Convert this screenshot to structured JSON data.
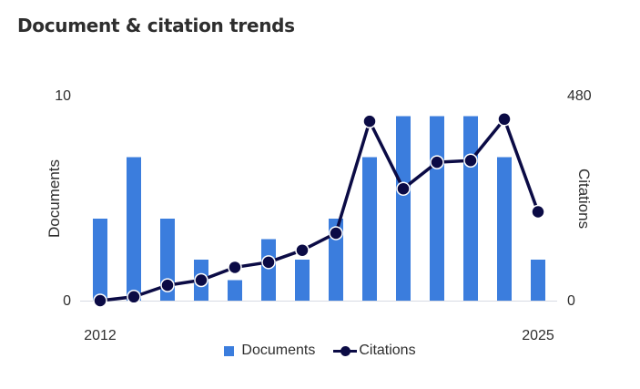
{
  "title": "Document & citation trends",
  "colors": {
    "documents": "#3b7ddd",
    "citations": "#0b0b45",
    "axis": "#d7dbe3"
  },
  "chart_data": {
    "type": "bar",
    "x": [
      2012,
      2013,
      2014,
      2015,
      2016,
      2017,
      2018,
      2019,
      2020,
      2021,
      2022,
      2023,
      2024,
      2025
    ],
    "x_tick_labels": [
      "2012",
      "2025"
    ],
    "series": [
      {
        "name": "Documents",
        "type": "bar",
        "axis": "left",
        "values": [
          4,
          7,
          4,
          2,
          1,
          3,
          2,
          4,
          7,
          9,
          9,
          9,
          7,
          2
        ]
      },
      {
        "name": "Citations",
        "type": "line",
        "axis": "right",
        "values": [
          0,
          9,
          36,
          48,
          78,
          90,
          118,
          158,
          420,
          262,
          324,
          328,
          425,
          208
        ]
      }
    ],
    "y_left": {
      "label": "Documents",
      "lim": [
        0,
        10
      ],
      "tick_labels": [
        "0",
        "10"
      ]
    },
    "y_right": {
      "label": "Citations",
      "lim": [
        0,
        480
      ],
      "tick_labels": [
        "0",
        "480"
      ]
    },
    "legend": {
      "placement": "bottom",
      "entries": [
        "Documents",
        "Citations"
      ]
    },
    "grid": false
  }
}
